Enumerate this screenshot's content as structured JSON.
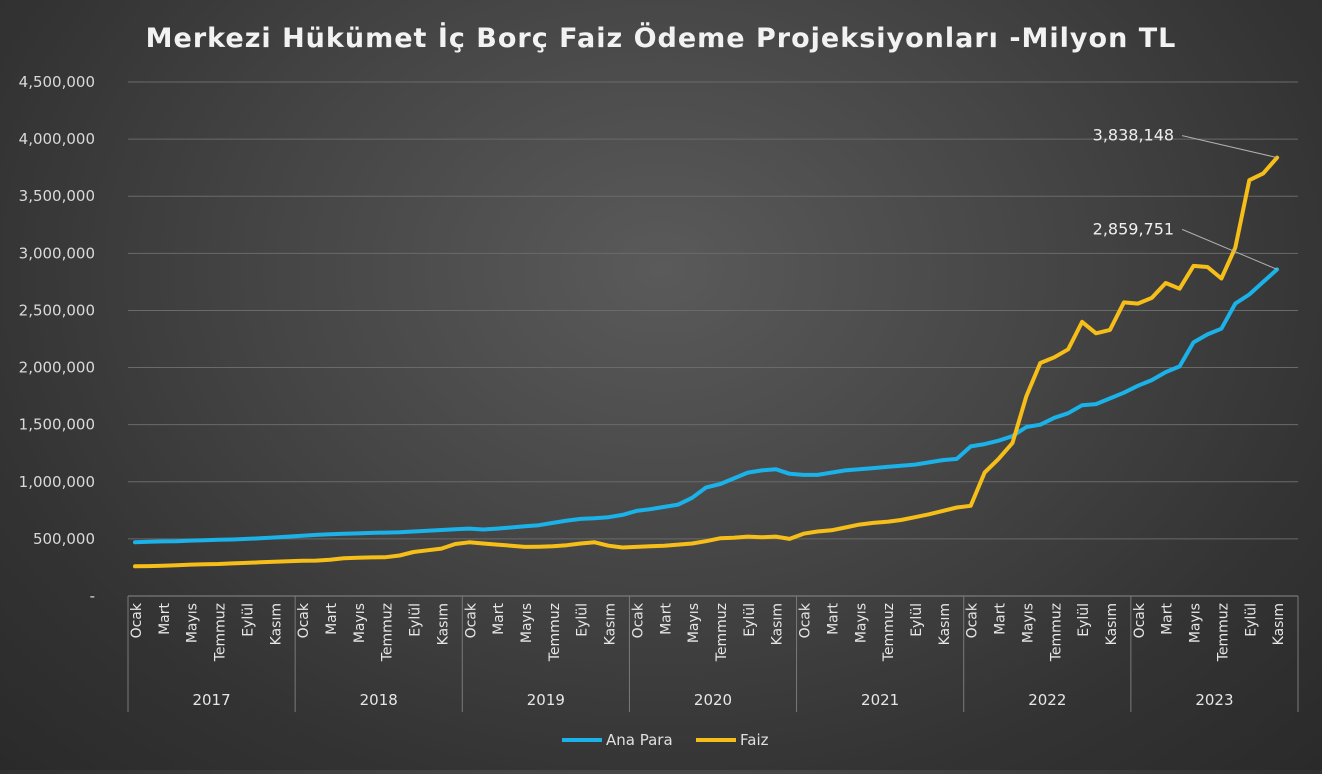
{
  "chart_data": {
    "type": "line",
    "title": "Merkezi Hükümet İç Borç Faiz Ödeme Projeksiyonları -Milyon TL",
    "xlabel": "",
    "ylabel": "",
    "ylim": [
      0,
      4500000
    ],
    "yticks": [
      "-",
      "500,000",
      "1,000,000",
      "1,500,000",
      "2,000,000",
      "2,500,000",
      "3,000,000",
      "3,500,000",
      "4,000,000",
      "4,500,000"
    ],
    "years": [
      "2017",
      "2018",
      "2019",
      "2020",
      "2021",
      "2022",
      "2023"
    ],
    "month_labels": [
      "Ocak",
      "Mart",
      "Mayıs",
      "Temmuz",
      "Eylül",
      "Kasım"
    ],
    "grid": true,
    "legend_position": "bottom",
    "series": [
      {
        "name": "Ana Para",
        "color": "#1ab2e8",
        "end_label": "2,859,751",
        "values": [
          470000,
          475000,
          478000,
          480000,
          485000,
          488000,
          492000,
          495000,
          500000,
          505000,
          512000,
          520000,
          528000,
          535000,
          540000,
          545000,
          548000,
          552000,
          555000,
          558000,
          565000,
          572000,
          578000,
          585000,
          590000,
          582000,
          590000,
          600000,
          610000,
          620000,
          640000,
          660000,
          675000,
          680000,
          690000,
          710000,
          745000,
          760000,
          780000,
          800000,
          860000,
          950000,
          980000,
          1030000,
          1080000,
          1100000,
          1110000,
          1070000,
          1060000,
          1060000,
          1080000,
          1100000,
          1110000,
          1120000,
          1130000,
          1140000,
          1150000,
          1170000,
          1190000,
          1200000,
          1310000,
          1330000,
          1360000,
          1400000,
          1480000,
          1500000,
          1560000,
          1600000,
          1670000,
          1680000,
          1730000,
          1780000,
          1840000,
          1890000,
          1960000,
          2010000,
          2220000,
          2290000,
          2340000,
          2560000,
          2640000,
          2750000,
          2859751
        ]
      },
      {
        "name": "Faiz",
        "color": "#f6be19",
        "end_label": "3,838,148",
        "values": [
          260000,
          262000,
          265000,
          270000,
          275000,
          278000,
          280000,
          285000,
          290000,
          295000,
          300000,
          305000,
          308000,
          310000,
          318000,
          330000,
          335000,
          338000,
          340000,
          355000,
          385000,
          400000,
          415000,
          455000,
          470000,
          460000,
          450000,
          440000,
          430000,
          432000,
          435000,
          445000,
          460000,
          470000,
          440000,
          425000,
          430000,
          435000,
          440000,
          450000,
          460000,
          480000,
          505000,
          510000,
          520000,
          515000,
          520000,
          500000,
          545000,
          565000,
          575000,
          600000,
          625000,
          640000,
          650000,
          665000,
          690000,
          715000,
          745000,
          775000,
          790000,
          1080000,
          1200000,
          1340000,
          1750000,
          2040000,
          2090000,
          2160000,
          2400000,
          2300000,
          2330000,
          2570000,
          2560000,
          2610000,
          2740000,
          2690000,
          2890000,
          2880000,
          2780000,
          3050000,
          3640000,
          3700000,
          3838148
        ]
      }
    ]
  }
}
